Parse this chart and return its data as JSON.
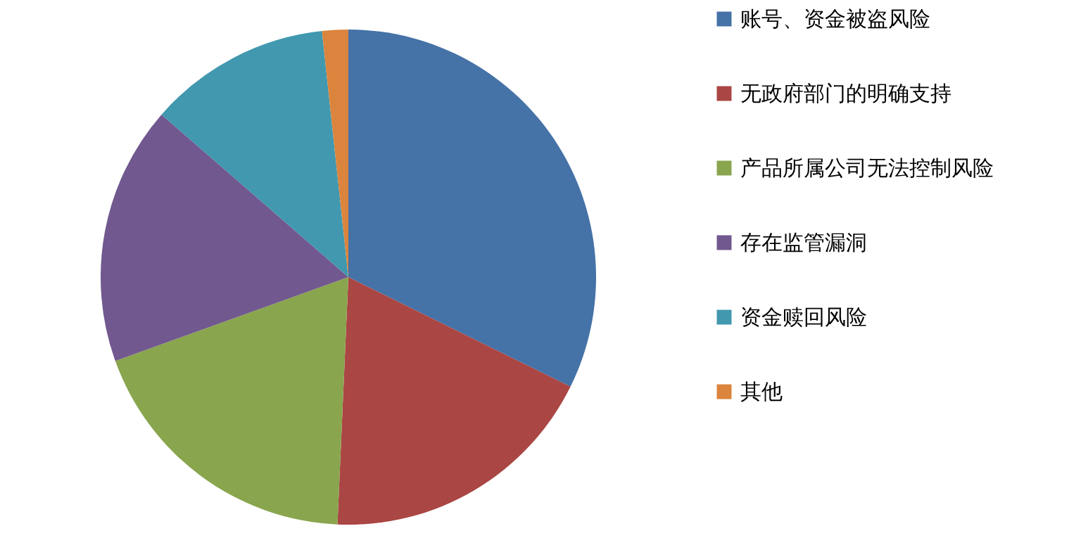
{
  "chart_data": {
    "type": "pie",
    "categories": [
      "账号、资金被盗风险",
      "无政府部门的明确支持",
      "产品所属公司无法控制风险",
      "存在监管漏洞",
      "资金赎回风险",
      "其他"
    ],
    "values": [
      32.3,
      18.4,
      18.8,
      16.9,
      11.9,
      1.7
    ],
    "colors": [
      "#4572a7",
      "#aa4643",
      "#89a54e",
      "#71588f",
      "#4198af",
      "#db843d"
    ],
    "legend": "right"
  }
}
